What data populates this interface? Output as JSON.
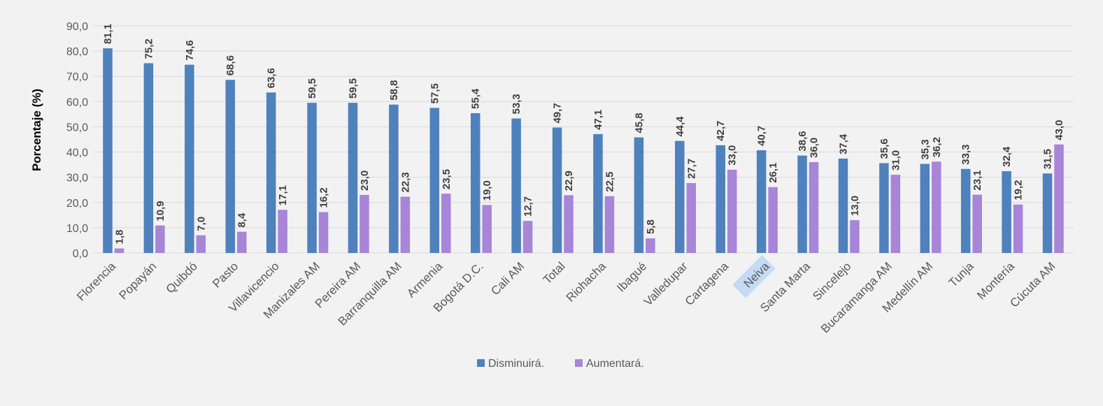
{
  "chart_data": {
    "type": "bar",
    "ylabel": "Porcentaje (%)",
    "xlabel": "",
    "ylim": [
      0,
      90
    ],
    "yticks": [
      "0,0",
      "10,0",
      "20,0",
      "30,0",
      "40,0",
      "50,0",
      "60,0",
      "70,0",
      "80,0",
      "90,0"
    ],
    "grid": true,
    "legend_position": "bottom",
    "highlighted_category": "Neiva",
    "categories": [
      "Florencia",
      "Popayán",
      "Quibdó",
      "Pasto",
      "Villavicencio",
      "Manizales AM",
      "Pereira AM",
      "Barranquilla AM",
      "Armenia",
      "Bogotá D.C.",
      "Cali AM",
      "Total",
      "Riohacha",
      "Ibagué",
      "Valledupar",
      "Cartagena",
      "Neiva",
      "Santa Marta",
      "Sincelejo",
      "Bucaramanga AM",
      "Medellín AM",
      "Tunja",
      "Montería",
      "Cúcuta AM"
    ],
    "series": [
      {
        "name": "Disminuirá.",
        "color": "#4f81bd",
        "values": [
          81.1,
          75.2,
          74.6,
          68.6,
          63.6,
          59.5,
          59.5,
          58.8,
          57.5,
          55.4,
          53.3,
          49.7,
          47.1,
          45.8,
          44.4,
          42.7,
          40.7,
          38.6,
          37.4,
          35.6,
          35.3,
          33.3,
          32.4,
          31.5
        ],
        "labels": [
          "81,1",
          "75,2",
          "74,6",
          "68,6",
          "63,6",
          "59,5",
          "59,5",
          "58,8",
          "57,5",
          "55,4",
          "53,3",
          "49,7",
          "47,1",
          "45,8",
          "44,4",
          "42,7",
          "40,7",
          "38,6",
          "37,4",
          "35,6",
          "35,3",
          "33,3",
          "32,4",
          "31,5"
        ]
      },
      {
        "name": "Aumentará.",
        "color": "#a885d8",
        "values": [
          1.8,
          10.9,
          7.0,
          8.4,
          17.1,
          16.2,
          23.0,
          22.3,
          23.5,
          19.0,
          12.7,
          22.9,
          22.5,
          5.8,
          27.7,
          33.0,
          26.1,
          36.0,
          13.0,
          31.0,
          36.2,
          23.1,
          19.2,
          43.0
        ],
        "labels": [
          "1,8",
          "10,9",
          "7,0",
          "8,4",
          "17,1",
          "16,2",
          "23,0",
          "22,3",
          "23,5",
          "19,0",
          "12,7",
          "22,9",
          "22,5",
          "5,8",
          "27,7",
          "33,0",
          "26,1",
          "36,0",
          "13,0",
          "31,0",
          "36,2",
          "23,1",
          "19,2",
          "43,0"
        ]
      }
    ]
  }
}
